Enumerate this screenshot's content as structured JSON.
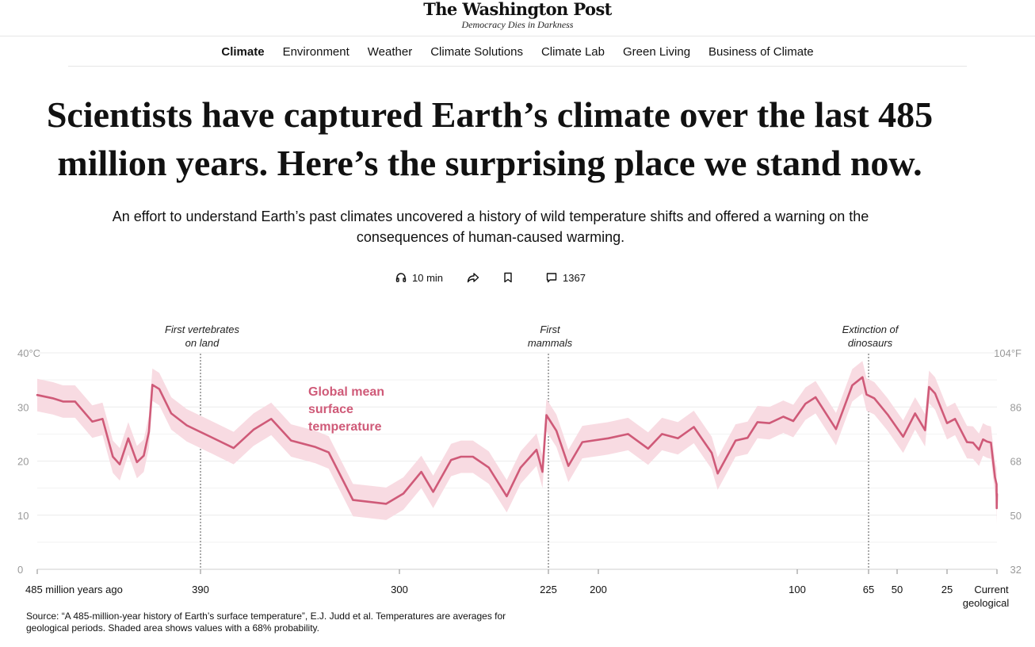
{
  "masthead": {
    "logo": "The Washington Post",
    "tagline": "Democracy Dies in Darkness"
  },
  "nav": {
    "items": [
      {
        "label": "Climate",
        "active": true
      },
      {
        "label": "Environment",
        "active": false
      },
      {
        "label": "Weather",
        "active": false
      },
      {
        "label": "Climate Solutions",
        "active": false
      },
      {
        "label": "Climate Lab",
        "active": false
      },
      {
        "label": "Green Living",
        "active": false
      },
      {
        "label": "Business of Climate",
        "active": false
      }
    ]
  },
  "article": {
    "headline": "Scientists have captured Earth’s climate over the last 485 million years. Here’s the surprising place we stand now.",
    "dek": "An effort to understand Earth’s past climates uncovered a history of wild temperature shifts and offered a warning on the consequences of human-caused warming."
  },
  "toolbar": {
    "listen_label": "10 min",
    "comment_count": "1367",
    "icons": [
      "headphones-icon",
      "share-icon",
      "bookmark-icon",
      "comment-icon"
    ]
  },
  "chart_data": {
    "type": "line",
    "series": [
      {
        "name": "Global mean surface temperature",
        "color": "#cf5a78",
        "band_color": "#f8dbe2",
        "points": [
          [
            485,
            32.2
          ],
          [
            476,
            31.6
          ],
          [
            470,
            31.0
          ],
          [
            463,
            31.0
          ],
          [
            453,
            27.3
          ],
          [
            447,
            27.8
          ],
          [
            441,
            20.8
          ],
          [
            437,
            19.4
          ],
          [
            432,
            24.2
          ],
          [
            427,
            19.8
          ],
          [
            423,
            21.0
          ],
          [
            420,
            25.4
          ],
          [
            418,
            34.1
          ],
          [
            414,
            33.3
          ],
          [
            407,
            28.8
          ],
          [
            398,
            26.6
          ],
          [
            385,
            24.4
          ],
          [
            375,
            22.4
          ],
          [
            366,
            25.8
          ],
          [
            358,
            27.8
          ],
          [
            349,
            23.8
          ],
          [
            338,
            22.6
          ],
          [
            332,
            21.6
          ],
          [
            321,
            12.8
          ],
          [
            306,
            12.1
          ],
          [
            298,
            14.0
          ],
          [
            289,
            18.0
          ],
          [
            283,
            14.3
          ],
          [
            274,
            20.2
          ],
          [
            269,
            20.8
          ],
          [
            263,
            20.8
          ],
          [
            255,
            18.8
          ],
          [
            246,
            13.5
          ],
          [
            239,
            18.8
          ],
          [
            231,
            22.1
          ],
          [
            228,
            18.0
          ],
          [
            226,
            28.5
          ],
          [
            221,
            25.6
          ],
          [
            215,
            19.1
          ],
          [
            208,
            23.5
          ],
          [
            195,
            24.2
          ],
          [
            185,
            25.0
          ],
          [
            175,
            22.3
          ],
          [
            168,
            25.0
          ],
          [
            160,
            24.2
          ],
          [
            152,
            26.3
          ],
          [
            143,
            21.5
          ],
          [
            140,
            17.7
          ],
          [
            131,
            23.8
          ],
          [
            125,
            24.3
          ],
          [
            120,
            27.2
          ],
          [
            114,
            27.0
          ],
          [
            107,
            28.2
          ],
          [
            102,
            27.4
          ],
          [
            96,
            30.6
          ],
          [
            91,
            31.8
          ],
          [
            81,
            25.9
          ],
          [
            73,
            34.0
          ],
          [
            68,
            35.5
          ],
          [
            66,
            32.3
          ],
          [
            62,
            31.6
          ],
          [
            55,
            28.6
          ],
          [
            47,
            24.5
          ],
          [
            41,
            28.8
          ],
          [
            36,
            25.7
          ],
          [
            34,
            33.7
          ],
          [
            31,
            32.5
          ],
          [
            25,
            27.0
          ],
          [
            21,
            27.8
          ],
          [
            15,
            23.5
          ],
          [
            12,
            23.4
          ],
          [
            9,
            22.1
          ],
          [
            7,
            24.0
          ],
          [
            5,
            23.6
          ],
          [
            3,
            23.4
          ],
          [
            1,
            17.0
          ],
          [
            0.2,
            15.7
          ],
          [
            0.1,
            11.3
          ],
          [
            0,
            13.9
          ]
        ]
      }
    ],
    "series_label": "Global mean surface temperature",
    "uncertainty_half_width": 3,
    "y_left": {
      "ylim": [
        0,
        40
      ],
      "ticks": [
        "0",
        "10",
        "20",
        "30",
        "40°C"
      ]
    },
    "y_right": {
      "ticks": [
        "32",
        "50",
        "68",
        "86",
        "104°F"
      ]
    },
    "x_ticks": [
      "485 million years ago",
      "390",
      "300",
      "225",
      "200",
      "100",
      "65",
      "50",
      "25",
      "Current geological stage"
    ],
    "x_tick_values": [
      485,
      390,
      300,
      225,
      200,
      100,
      65,
      50,
      25,
      0
    ],
    "annotations": [
      {
        "x": 390,
        "label": "First vertebrates on land"
      },
      {
        "x": 225,
        "label": "First mammals"
      },
      {
        "x": 65,
        "label": "Extinction of dinosaurs"
      }
    ],
    "grid": true
  },
  "source": "Source: “A 485-million-year history of Earth’s surface temperature”, E.J. Judd et al. Temperatures are averages for geological periods. Shaded area shows values with a 68% probability."
}
